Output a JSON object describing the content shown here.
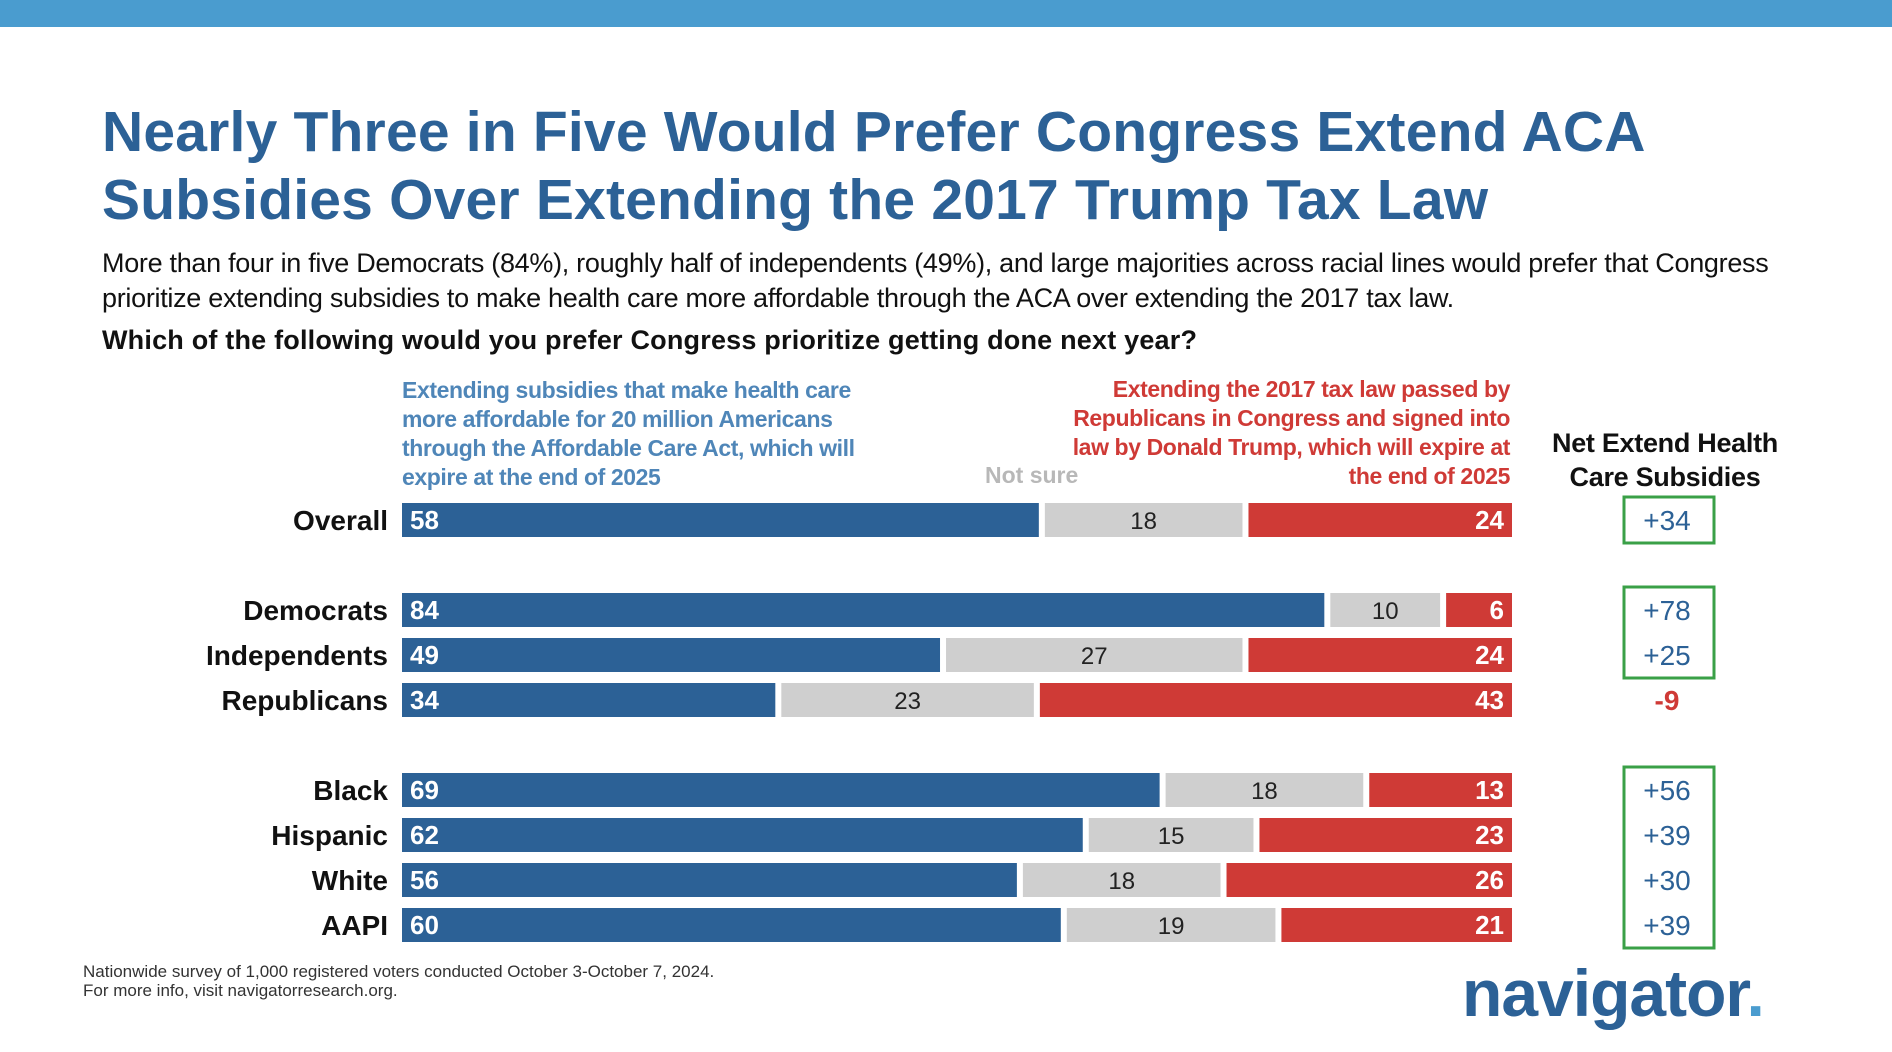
{
  "title": "Nearly Three in Five Would Prefer Congress Extend ACA Subsidies Over Extending the 2017 Trump Tax Law",
  "subtitle": "More than four in five Democrats (84%), roughly half of independents (49%), and large majorities across racial lines would prefer that Congress prioritize extending subsidies to make health care more affordable through the ACA over extending the 2017 tax law.",
  "question": "Which of the following would you prefer Congress prioritize getting done next year?",
  "footnote": {
    "line1": "Nationwide survey of 1,000 registered voters conducted October 3-October 7, 2024.",
    "line2": "For more info, visit navigatorresearch.org."
  },
  "logo": {
    "text": "navigator",
    "dot": "."
  },
  "colors": {
    "blue": "#2c6196",
    "gray": "#cfcfcf",
    "red": "#cf3a36",
    "net_positive_border": "#3aa047",
    "net_negative_text": "#cf3a36",
    "header_blue": "#4f86b8",
    "top_bar": "#4a9ccf"
  },
  "chart_data": {
    "type": "bar",
    "orientation": "horizontal",
    "stacked": true,
    "xlim": [
      0,
      100
    ],
    "series": [
      {
        "name": "Extending subsidies that make health care more affordable for 20 million Americans through the Affordable Care Act, which will expire at the end of 2025",
        "color": "#2c6196",
        "values": [
          58,
          84,
          49,
          34,
          69,
          62,
          56,
          60
        ]
      },
      {
        "name": "Not sure",
        "color": "#cfcfcf",
        "values": [
          18,
          10,
          27,
          23,
          18,
          15,
          18,
          19
        ]
      },
      {
        "name": "Extending the 2017 tax law passed by Republicans in Congress and signed into law by Donald Trump, which will expire at the end of 2025",
        "color": "#cf3a36",
        "values": [
          24,
          6,
          24,
          43,
          13,
          23,
          26,
          21
        ]
      }
    ],
    "categories": [
      "Overall",
      "Democrats",
      "Independents",
      "Republicans",
      "Black",
      "Hispanic",
      "White",
      "AAPI"
    ],
    "groups": [
      [
        0
      ],
      [
        1,
        2,
        3
      ],
      [
        4,
        5,
        6,
        7
      ]
    ],
    "net": {
      "title": "Net Extend Health Care Subsidies",
      "values": [
        "+34",
        "+78",
        "+25",
        "-9",
        "+56",
        "+39",
        "+30",
        "+39"
      ],
      "boxed_groups": [
        [
          0
        ],
        [
          1,
          2
        ],
        [
          4,
          5,
          6,
          7
        ]
      ]
    }
  }
}
